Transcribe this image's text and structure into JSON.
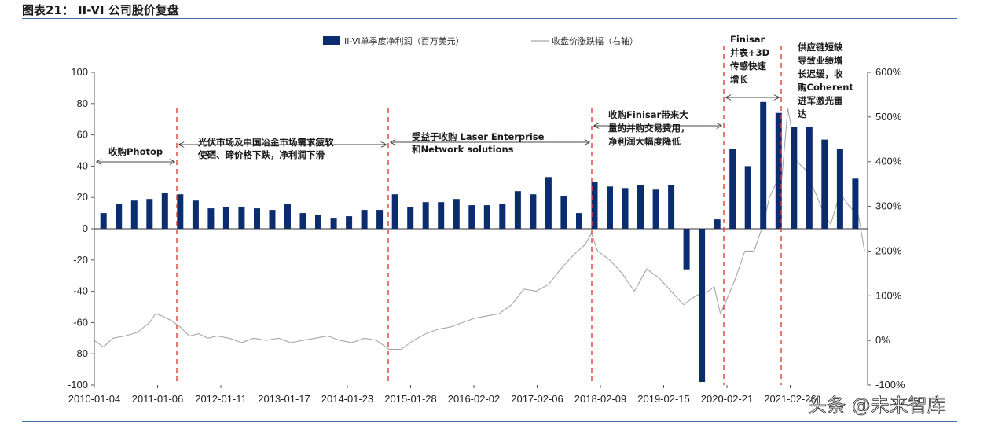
{
  "figure_title": "图表21： II-VI 公司股价复盘",
  "watermark": "头条 @未来智库",
  "chart_data": {
    "type": "bar+line",
    "legend": {
      "bar": "II-VI单季度净利润（百万美元）",
      "line": "收盘价涨跌幅（右轴）"
    },
    "x_tick_labels": [
      "2010-01-04",
      "2011-01-06",
      "2012-01-11",
      "2013-01-17",
      "2014-01-23",
      "2015-01-28",
      "2016-02-02",
      "2017-02-06",
      "2018-02-09",
      "2019-02-15",
      "2020-02-21",
      "2021-02-26"
    ],
    "left_axis": {
      "ylim": [
        -100,
        100
      ],
      "ticks": [
        "-100",
        "-80",
        "-60",
        "-40",
        "-20",
        "0",
        "20",
        "40",
        "60",
        "80",
        "100"
      ]
    },
    "right_axis": {
      "ylim": [
        -100,
        600
      ],
      "ticks": [
        "-100%",
        "0%",
        "100%",
        "200%",
        "300%",
        "400%",
        "500%",
        "600%"
      ]
    },
    "bar_series": {
      "name": "II-VI单季度净利润（百万美元）",
      "x": [
        2010.15,
        2010.4,
        2010.65,
        2010.9,
        2011.15,
        2011.4,
        2011.65,
        2011.9,
        2012.15,
        2012.4,
        2012.65,
        2012.9,
        2013.15,
        2013.4,
        2013.65,
        2013.9,
        2014.15,
        2014.4,
        2014.65,
        2014.9,
        2015.15,
        2015.4,
        2015.65,
        2015.9,
        2016.15,
        2016.4,
        2016.65,
        2016.9,
        2017.15,
        2017.4,
        2017.65,
        2017.9,
        2018.15,
        2018.4,
        2018.65,
        2018.9,
        2019.15,
        2019.4,
        2019.65,
        2019.9,
        2020.15,
        2020.4,
        2020.65,
        2020.9,
        2021.15,
        2021.4,
        2021.65,
        2021.9,
        2022.15,
        2022.4
      ],
      "values": [
        10,
        16,
        18,
        19,
        23,
        22,
        18,
        13,
        14,
        14,
        13,
        12,
        16,
        10,
        9,
        7,
        8,
        12,
        12,
        22,
        14,
        17,
        17,
        19,
        15,
        15,
        16,
        24,
        22,
        33,
        21,
        10,
        30,
        27,
        26,
        28,
        25,
        28,
        -26,
        -98,
        6,
        51,
        40,
        81,
        74,
        65,
        65,
        57,
        51,
        32
      ]
    },
    "line_series": {
      "name": "收盘价涨跌幅（右轴）",
      "x": [
        2010.0,
        2010.15,
        2010.3,
        2010.5,
        2010.7,
        2010.9,
        2011.0,
        2011.1,
        2011.25,
        2011.4,
        2011.55,
        2011.7,
        2011.85,
        2012.0,
        2012.2,
        2012.4,
        2012.6,
        2012.8,
        2013.0,
        2013.2,
        2013.4,
        2013.6,
        2013.8,
        2014.0,
        2014.2,
        2014.4,
        2014.6,
        2014.8,
        2015.0,
        2015.2,
        2015.4,
        2015.6,
        2015.8,
        2016.0,
        2016.2,
        2016.4,
        2016.6,
        2016.8,
        2017.0,
        2017.2,
        2017.4,
        2017.6,
        2017.8,
        2018.0,
        2018.1,
        2018.2,
        2018.4,
        2018.6,
        2018.8,
        2019.0,
        2019.2,
        2019.4,
        2019.6,
        2019.8,
        2020.0,
        2020.1,
        2020.2,
        2020.3,
        2020.45,
        2020.6,
        2020.75,
        2020.9,
        2021.0,
        2021.1,
        2021.2,
        2021.3,
        2021.45,
        2021.6,
        2021.75,
        2021.9,
        2022.0,
        2022.15,
        2022.3,
        2022.45,
        2022.55
      ],
      "values": [
        0,
        -15,
        5,
        10,
        18,
        40,
        60,
        55,
        45,
        30,
        10,
        15,
        5,
        10,
        5,
        -5,
        5,
        0,
        5,
        -5,
        0,
        5,
        10,
        0,
        -5,
        5,
        0,
        -20,
        -20,
        0,
        15,
        25,
        30,
        40,
        50,
        55,
        60,
        80,
        115,
        110,
        125,
        160,
        190,
        215,
        240,
        200,
        180,
        150,
        110,
        160,
        140,
        110,
        80,
        100,
        110,
        120,
        60,
        90,
        140,
        200,
        200,
        260,
        320,
        350,
        360,
        520,
        400,
        380,
        330,
        280,
        260,
        330,
        300,
        280,
        200
      ]
    }
  },
  "annotations": {
    "a1": "收购Photop",
    "a2_line1": "光伏市场及中国冶金市场需求疲软",
    "a2_line2": "使硒、碲价格下跌，净利润下滑",
    "a3_line1": "受益于收购 Laser Enterprise",
    "a3_line2": "和Network solutions",
    "a4_line1": "收购Finisar带来大",
    "a4_line2": "量的并购交易费用，",
    "a4_line3": "净利润大幅度降低",
    "a5_line1": "Finisar",
    "a5_line2": "并表+3D",
    "a5_line3": "传感快速",
    "a5_line4": "增长",
    "a6_line1": "供应链短缺",
    "a6_line2": "导致业绩增",
    "a6_line3": "长迟缓，收",
    "a6_line4": "购Coherent",
    "a6_line5": "进军激光雷",
    "a6_line6": "达"
  },
  "colors": {
    "bar": "#0b2c6e",
    "line": "#a6a6a6",
    "divider": "#e83a3a",
    "rule": "#3f6fb5"
  }
}
